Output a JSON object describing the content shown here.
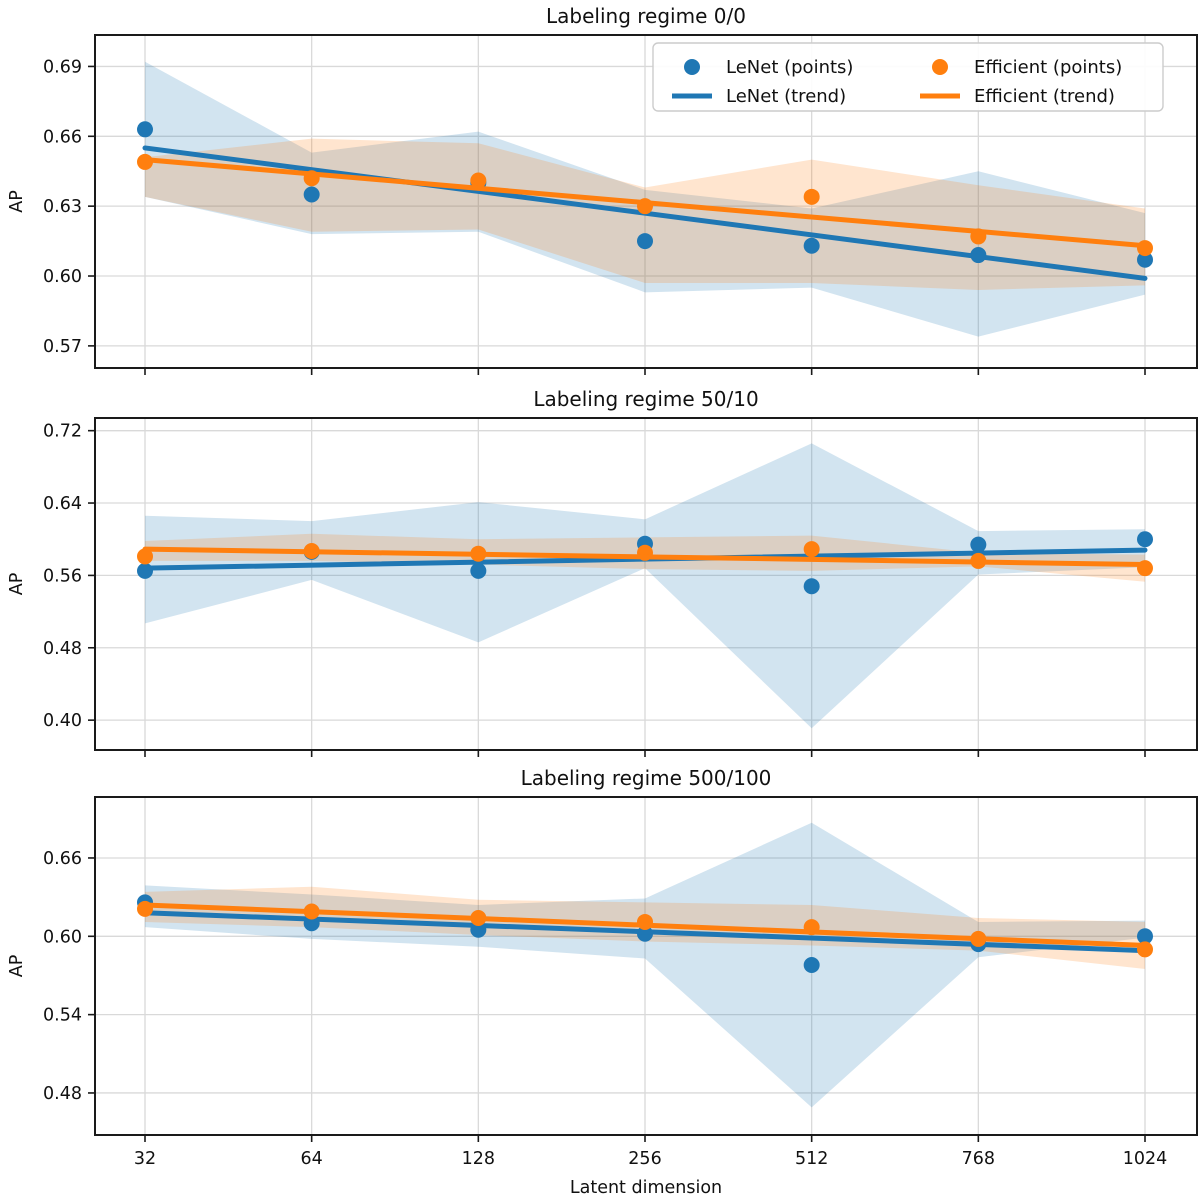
{
  "figure": {
    "x_label": "Latent dimension",
    "y_label": "AP",
    "categories": [
      "32",
      "64",
      "128",
      "256",
      "512",
      "768",
      "1024"
    ],
    "colors": {
      "lenet_blue": "#1f77b4",
      "efficient_orange": "#ff7f0e",
      "grid": "#d9d9d9",
      "axes": "#1a1a1a"
    },
    "legend": [
      {
        "label": "LeNet (points)",
        "marker": "dot",
        "color": "#1f77b4"
      },
      {
        "label": "LeNet (trend)",
        "marker": "line",
        "color": "#1f77b4"
      },
      {
        "label": "Efficient (points)",
        "marker": "dot",
        "color": "#ff7f0e"
      },
      {
        "label": "Efficient (trend)",
        "marker": "line",
        "color": "#ff7f0e"
      }
    ]
  },
  "chart_data": [
    {
      "type": "scatter",
      "title": "Labeling regime 0/0",
      "xlabel": "Latent dimension",
      "ylabel": "AP",
      "x": [
        32,
        64,
        128,
        256,
        512,
        768,
        1024
      ],
      "yticks": [
        0.57,
        0.6,
        0.63,
        0.66,
        0.69
      ],
      "ylim": [
        0.5605,
        0.7035
      ],
      "grid": true,
      "legend_position": "upper right",
      "series": [
        {
          "name": "LeNet (points)",
          "type": "scatter",
          "color": "#1f77b4",
          "values": [
            0.663,
            0.635,
            0.64,
            0.615,
            0.613,
            0.609,
            0.607
          ]
        },
        {
          "name": "LeNet (trend)",
          "type": "line",
          "color": "#1f77b4",
          "trend_endpoints": [
            0.655,
            0.599
          ]
        },
        {
          "name": "LeNet (band)",
          "type": "band",
          "color": "#1f77b4",
          "upper": [
            0.692,
            0.653,
            0.662,
            0.637,
            0.629,
            0.645,
            0.627
          ],
          "lower": [
            0.634,
            0.618,
            0.619,
            0.593,
            0.595,
            0.574,
            0.592
          ]
        },
        {
          "name": "Efficient (points)",
          "type": "scatter",
          "color": "#ff7f0e",
          "values": [
            0.649,
            0.642,
            0.641,
            0.63,
            0.634,
            0.617,
            0.612
          ]
        },
        {
          "name": "Efficient (trend)",
          "type": "line",
          "color": "#ff7f0e",
          "trend_endpoints": [
            0.65,
            0.613
          ]
        },
        {
          "name": "Efficient (band)",
          "type": "band",
          "color": "#ff7f0e",
          "upper": [
            0.651,
            0.659,
            0.657,
            0.638,
            0.65,
            0.639,
            0.629
          ],
          "lower": [
            0.634,
            0.619,
            0.62,
            0.597,
            0.597,
            0.594,
            0.596
          ]
        }
      ]
    },
    {
      "type": "scatter",
      "title": "Labeling regime 50/10",
      "xlabel": "Latent dimension",
      "ylabel": "AP",
      "x": [
        32,
        64,
        128,
        256,
        512,
        768,
        1024
      ],
      "yticks": [
        0.4,
        0.48,
        0.56,
        0.64,
        0.72
      ],
      "ylim": [
        0.367,
        0.734
      ],
      "grid": true,
      "series": [
        {
          "name": "LeNet (points)",
          "type": "scatter",
          "color": "#1f77b4",
          "values": [
            0.565,
            0.586,
            0.565,
            0.595,
            0.548,
            0.594,
            0.6
          ]
        },
        {
          "name": "LeNet (trend)",
          "type": "line",
          "color": "#1f77b4",
          "trend_endpoints": [
            0.568,
            0.588
          ]
        },
        {
          "name": "LeNet (band)",
          "type": "band",
          "color": "#1f77b4",
          "upper": [
            0.626,
            0.62,
            0.641,
            0.622,
            0.706,
            0.609,
            0.611
          ],
          "lower": [
            0.507,
            0.555,
            0.486,
            0.568,
            0.391,
            0.561,
            0.569
          ]
        },
        {
          "name": "Efficient (points)",
          "type": "scatter",
          "color": "#ff7f0e",
          "values": [
            0.581,
            0.587,
            0.584,
            0.585,
            0.589,
            0.576,
            0.568
          ]
        },
        {
          "name": "Efficient (trend)",
          "type": "line",
          "color": "#ff7f0e",
          "trend_endpoints": [
            0.589,
            0.572
          ]
        },
        {
          "name": "Efficient (band)",
          "type": "band",
          "color": "#ff7f0e",
          "upper": [
            0.598,
            0.606,
            0.6,
            0.602,
            0.604,
            0.585,
            0.583
          ],
          "lower": [
            0.576,
            0.576,
            0.572,
            0.567,
            0.565,
            0.57,
            0.553
          ]
        }
      ]
    },
    {
      "type": "scatter",
      "title": "Labeling regime 500/100",
      "xlabel": "Latent dimension",
      "ylabel": "AP",
      "x": [
        32,
        64,
        128,
        256,
        512,
        768,
        1024
      ],
      "yticks": [
        0.48,
        0.54,
        0.6,
        0.66
      ],
      "ylim": [
        0.4478,
        0.7067
      ],
      "grid": true,
      "series": [
        {
          "name": "LeNet (points)",
          "type": "scatter",
          "color": "#1f77b4",
          "values": [
            0.626,
            0.61,
            0.605,
            0.602,
            0.578,
            0.594,
            0.6
          ]
        },
        {
          "name": "LeNet (trend)",
          "type": "line",
          "color": "#1f77b4",
          "trend_endpoints": [
            0.618,
            0.589
          ]
        },
        {
          "name": "LeNet (band)",
          "type": "band",
          "color": "#1f77b4",
          "upper": [
            0.639,
            0.632,
            0.624,
            0.629,
            0.687,
            0.611,
            0.612
          ],
          "lower": [
            0.607,
            0.598,
            0.592,
            0.583,
            0.469,
            0.584,
            0.599
          ]
        },
        {
          "name": "Efficient (points)",
          "type": "scatter",
          "color": "#ff7f0e",
          "values": [
            0.621,
            0.619,
            0.614,
            0.611,
            0.607,
            0.598,
            0.59
          ]
        },
        {
          "name": "Efficient (trend)",
          "type": "line",
          "color": "#ff7f0e",
          "trend_endpoints": [
            0.624,
            0.593
          ]
        },
        {
          "name": "Efficient (band)",
          "type": "band",
          "color": "#ff7f0e",
          "upper": [
            0.634,
            0.638,
            0.628,
            0.626,
            0.624,
            0.614,
            0.611
          ],
          "lower": [
            0.611,
            0.607,
            0.601,
            0.596,
            0.593,
            0.589,
            0.575
          ]
        }
      ]
    }
  ]
}
